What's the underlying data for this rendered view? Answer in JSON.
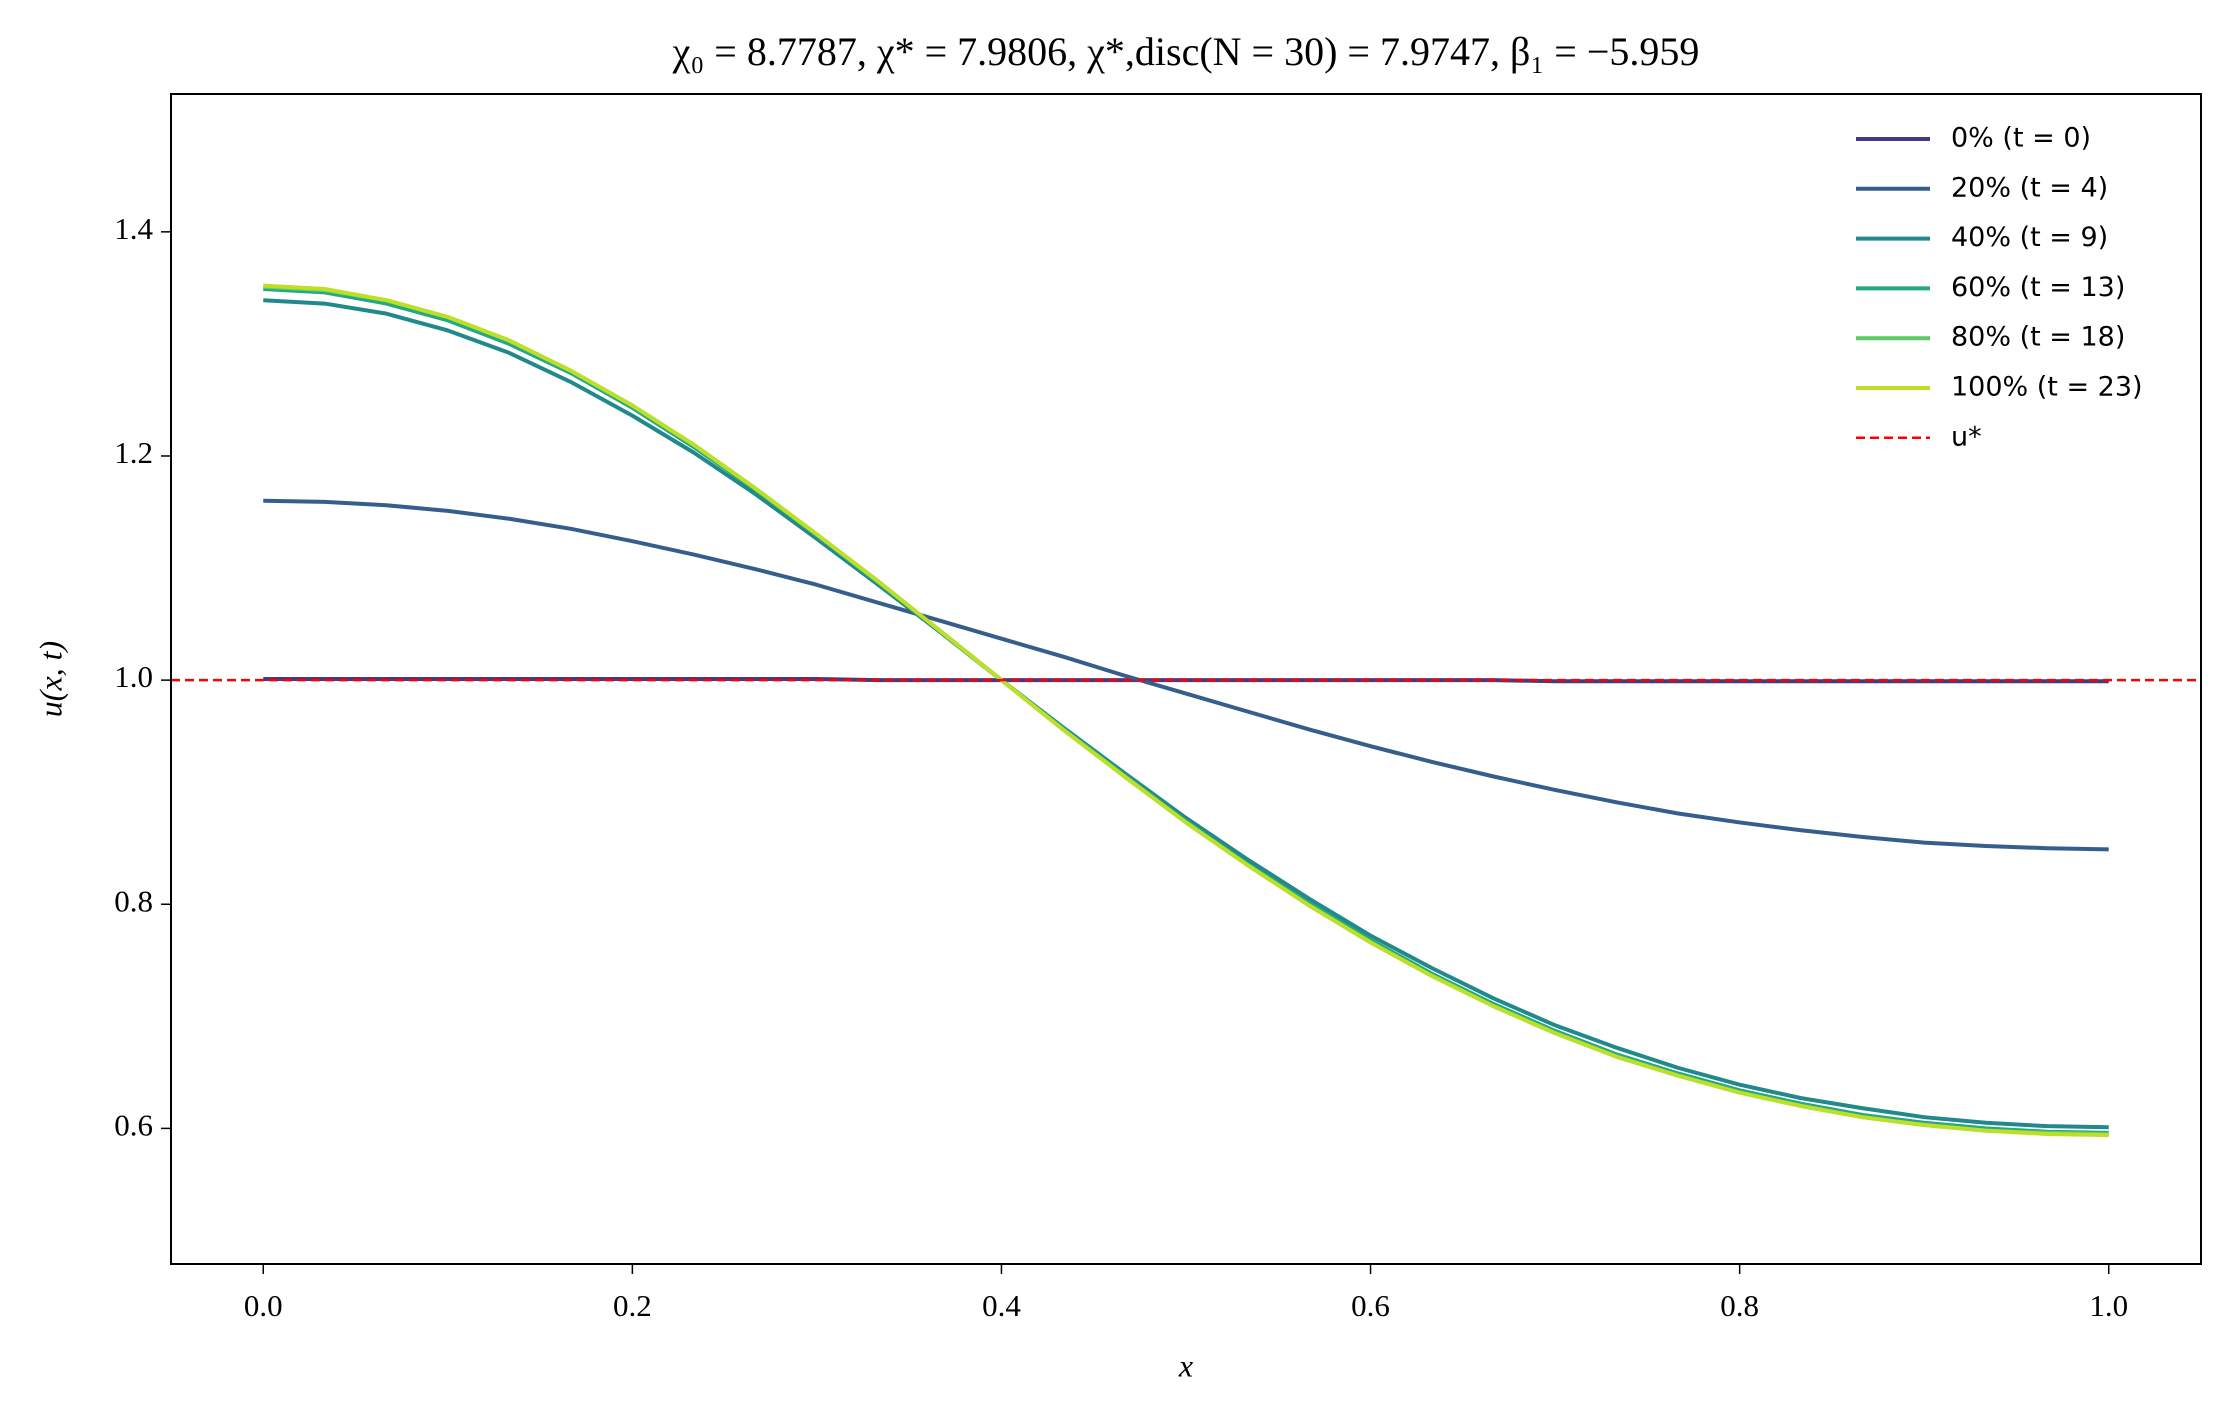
{
  "chart_data": {
    "type": "line",
    "title": "χ₀ = 8.7787,  χ* = 7.9806,  χ*,disc(N = 30) = 7.9747,  β₁ = −5.959",
    "x_label": "x",
    "y_label": "u(x, t)",
    "x": [
      0,
      0.0333,
      0.0667,
      0.1,
      0.1333,
      0.1667,
      0.2,
      0.2333,
      0.2667,
      0.3,
      0.3333,
      0.3667,
      0.4,
      0.4333,
      0.4667,
      0.5,
      0.5333,
      0.5667,
      0.6,
      0.6333,
      0.6667,
      0.7,
      0.7333,
      0.7667,
      0.8,
      0.8333,
      0.8667,
      0.9,
      0.9333,
      0.9667,
      1
    ],
    "series": [
      {
        "name": "0% (t = 0)",
        "color": "#443a83",
        "values": [
          1.001,
          1.001,
          1.001,
          1.001,
          1.001,
          1.001,
          1.001,
          1.001,
          1.001,
          1.001,
          1.0,
          1.0,
          1.0,
          1.0,
          1.0,
          1.0,
          1.0,
          1.0,
          1.0,
          1.0,
          1.0,
          0.999,
          0.999,
          0.999,
          0.999,
          0.999,
          0.999,
          0.999,
          0.999,
          0.999,
          0.999
        ]
      },
      {
        "name": "20% (t = 4)",
        "color": "#365e8d",
        "values": [
          1.16,
          1.159,
          1.156,
          1.151,
          1.144,
          1.135,
          1.124,
          1.112,
          1.099,
          1.085,
          1.069,
          1.053,
          1.037,
          1.021,
          1.004,
          0.988,
          0.972,
          0.956,
          0.941,
          0.927,
          0.914,
          0.902,
          0.891,
          0.881,
          0.873,
          0.866,
          0.86,
          0.855,
          0.852,
          0.85,
          0.849
        ]
      },
      {
        "name": "40% (t = 9)",
        "color": "#21888c",
        "values": [
          1.339,
          1.336,
          1.327,
          1.312,
          1.292,
          1.266,
          1.236,
          1.203,
          1.166,
          1.126,
          1.085,
          1.043,
          1.0,
          0.958,
          0.917,
          0.877,
          0.84,
          0.805,
          0.772,
          0.743,
          0.716,
          0.692,
          0.672,
          0.654,
          0.639,
          0.627,
          0.618,
          0.61,
          0.605,
          0.602,
          0.601
        ]
      },
      {
        "name": "60% (t = 13)",
        "color": "#22a884",
        "values": [
          1.349,
          1.346,
          1.336,
          1.321,
          1.3,
          1.274,
          1.243,
          1.208,
          1.17,
          1.129,
          1.087,
          1.044,
          1.0,
          0.957,
          0.915,
          0.874,
          0.836,
          0.801,
          0.768,
          0.738,
          0.711,
          0.687,
          0.666,
          0.649,
          0.634,
          0.622,
          0.612,
          0.605,
          0.6,
          0.597,
          0.596
        ]
      },
      {
        "name": "80% (t = 18)",
        "color": "#5ec962",
        "values": [
          1.351,
          1.348,
          1.339,
          1.324,
          1.303,
          1.276,
          1.245,
          1.21,
          1.171,
          1.13,
          1.088,
          1.044,
          1.0,
          0.956,
          0.914,
          0.873,
          0.835,
          0.799,
          0.766,
          0.736,
          0.709,
          0.685,
          0.664,
          0.647,
          0.632,
          0.62,
          0.61,
          0.603,
          0.598,
          0.596,
          0.595
        ]
      },
      {
        "name": "100% (t = 23)",
        "color": "#bddf26",
        "values": [
          1.352,
          1.349,
          1.339,
          1.324,
          1.303,
          1.276,
          1.245,
          1.21,
          1.171,
          1.13,
          1.088,
          1.044,
          1.0,
          0.956,
          0.914,
          0.873,
          0.835,
          0.799,
          0.766,
          0.736,
          0.709,
          0.685,
          0.664,
          0.647,
          0.632,
          0.62,
          0.61,
          0.603,
          0.598,
          0.595,
          0.594
        ]
      }
    ],
    "reference_lines": [
      {
        "name": "u*",
        "y": 1,
        "color": "#ff0000",
        "style": "dashed"
      }
    ],
    "xlim": [
      -0.05,
      1.05
    ],
    "ylim": [
      0.479,
      1.523
    ],
    "xticks": [
      {
        "value": 0,
        "label": "0.0"
      },
      0.2,
      0.4,
      0.6,
      0.8,
      {
        "value": 1,
        "label": "1.0"
      }
    ],
    "yticks": [
      0.6,
      0.8,
      {
        "value": 1,
        "label": "1.0"
      },
      1.2,
      1.4
    ],
    "grid": false,
    "legend": "upper right"
  }
}
